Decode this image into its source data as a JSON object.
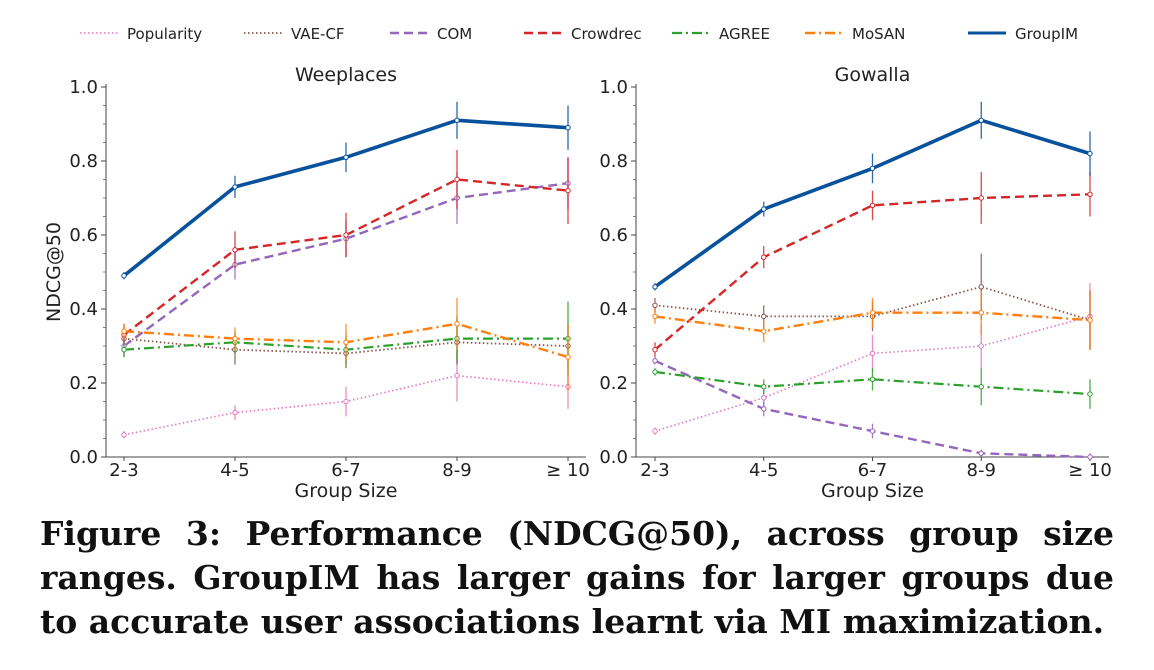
{
  "caption": "Figure 3: Performance (NDCG@50), across group size ranges. GroupIM has larger gains for larger groups due to accurate user associations learnt via MI maximization.",
  "series_styles": [
    {
      "name": "Popularity",
      "color": "#e377c2",
      "dash": "1.5 2.5",
      "width": 1.6
    },
    {
      "name": "VAE-CF",
      "color": "#8c564b",
      "dash": "1.5 2.5",
      "width": 1.8
    },
    {
      "name": "COM",
      "color": "#9467bd",
      "dash": "9 5",
      "width": 2.4
    },
    {
      "name": "Crowdrec",
      "color": "#d62728",
      "dash": "9 5",
      "width": 2.4
    },
    {
      "name": "AGREE",
      "color": "#2ca02c",
      "dash": "10 4 2 4",
      "width": 2.2
    },
    {
      "name": "MoSAN",
      "color": "#ff7f0e",
      "dash": "10 4 2 4",
      "width": 2.4
    },
    {
      "name": "GroupIM",
      "color": "#08519c",
      "dash": "",
      "width": 3.6
    }
  ],
  "chart_data": [
    {
      "type": "line",
      "title": "Weeplaces",
      "xlabel": "Group Size",
      "ylabel": "NDCG@50",
      "categories": [
        "2-3",
        "4-5",
        "6-7",
        "8-9",
        "≥ 10"
      ],
      "ylim": [
        0,
        1
      ],
      "yticks": [
        "0.0",
        "0.2",
        "0.4",
        "0.6",
        "0.8",
        "1.0"
      ],
      "series": [
        {
          "name": "Popularity",
          "values": [
            0.06,
            0.12,
            0.15,
            0.22,
            0.19
          ],
          "error": [
            0.01,
            0.02,
            0.04,
            0.07,
            0.06
          ]
        },
        {
          "name": "VAE-CF",
          "values": [
            0.32,
            0.29,
            0.28,
            0.31,
            0.3
          ],
          "error": [
            0.03,
            0.04,
            0.04,
            0.06,
            0.06
          ]
        },
        {
          "name": "COM",
          "values": [
            0.3,
            0.52,
            0.59,
            0.7,
            0.74
          ],
          "error": [
            0.03,
            0.04,
            0.05,
            0.07,
            0.07
          ]
        },
        {
          "name": "Crowdrec",
          "values": [
            0.33,
            0.56,
            0.6,
            0.75,
            0.72
          ],
          "error": [
            0.03,
            0.05,
            0.06,
            0.08,
            0.09
          ]
        },
        {
          "name": "AGREE",
          "values": [
            0.29,
            0.31,
            0.29,
            0.32,
            0.32
          ],
          "error": [
            0.02,
            0.03,
            0.04,
            0.06,
            0.1
          ]
        },
        {
          "name": "MoSAN",
          "values": [
            0.34,
            0.32,
            0.31,
            0.36,
            0.27
          ],
          "error": [
            0.02,
            0.03,
            0.05,
            0.07,
            0.09
          ]
        },
        {
          "name": "GroupIM",
          "values": [
            0.49,
            0.73,
            0.81,
            0.91,
            0.89
          ],
          "error": [
            0.01,
            0.03,
            0.04,
            0.05,
            0.06
          ]
        }
      ]
    },
    {
      "type": "line",
      "title": "Gowalla",
      "xlabel": "Group Size",
      "ylabel": "",
      "categories": [
        "2-3",
        "4-5",
        "6-7",
        "8-9",
        "≥ 10"
      ],
      "ylim": [
        0,
        1
      ],
      "yticks": [
        "0.0",
        "0.2",
        "0.4",
        "0.6",
        "0.8",
        "1.0"
      ],
      "series": [
        {
          "name": "Popularity",
          "values": [
            0.07,
            0.16,
            0.28,
            0.3,
            0.38
          ],
          "error": [
            0.01,
            0.03,
            0.05,
            0.06,
            0.09
          ]
        },
        {
          "name": "VAE-CF",
          "values": [
            0.41,
            0.38,
            0.38,
            0.46,
            0.37
          ],
          "error": [
            0.02,
            0.03,
            0.04,
            0.09,
            0.08
          ]
        },
        {
          "name": "COM",
          "values": [
            0.26,
            0.13,
            0.07,
            0.01,
            0.0
          ],
          "error": [
            0.01,
            0.02,
            0.02,
            0.01,
            0.01
          ]
        },
        {
          "name": "Crowdrec",
          "values": [
            0.29,
            0.54,
            0.68,
            0.7,
            0.71
          ],
          "error": [
            0.02,
            0.03,
            0.04,
            0.07,
            0.06
          ]
        },
        {
          "name": "AGREE",
          "values": [
            0.23,
            0.19,
            0.21,
            0.19,
            0.17
          ],
          "error": [
            0.01,
            0.02,
            0.03,
            0.05,
            0.04
          ]
        },
        {
          "name": "MoSAN",
          "values": [
            0.38,
            0.34,
            0.39,
            0.39,
            0.37
          ],
          "error": [
            0.02,
            0.03,
            0.04,
            0.06,
            0.08
          ]
        },
        {
          "name": "GroupIM",
          "values": [
            0.46,
            0.67,
            0.78,
            0.91,
            0.82
          ],
          "error": [
            0.01,
            0.02,
            0.04,
            0.05,
            0.06
          ]
        }
      ]
    }
  ]
}
